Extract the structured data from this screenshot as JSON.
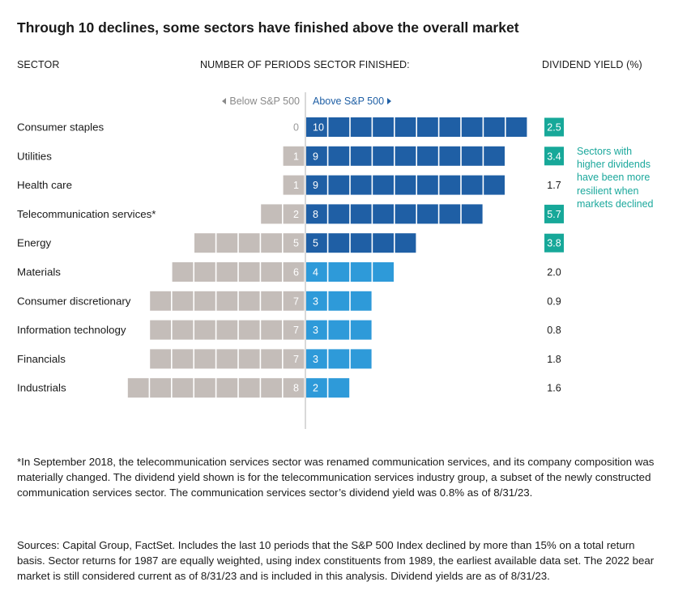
{
  "title": "Through 10 declines, some sectors have finished above the overall market",
  "headers": {
    "sector": "SECTOR",
    "periods": "NUMBER OF PERIODS SECTOR FINISHED:",
    "yield": "DIVIDEND YIELD (%)"
  },
  "directions": {
    "below": "Below S&P 500",
    "above": "Above S&P 500"
  },
  "note": "Sectors with higher dividends have been more resilient when markets declined",
  "colors": {
    "below_bar": "#c4bdb9",
    "above_dark": "#1f5fa5",
    "above_light": "#2e9ad9",
    "highlight_teal": "#17a899",
    "axis_line": "#b3b3b3",
    "zero_label": "#9a9a9a"
  },
  "chart_data": {
    "type": "bar",
    "orientation": "horizontal-diverging",
    "total_periods": 10,
    "categories": [
      "Consumer staples",
      "Utilities",
      "Health care",
      "Telecommunication services*",
      "Energy",
      "Materials",
      "Consumer discretionary",
      "Information technology",
      "Financials",
      "Industrials"
    ],
    "series": [
      {
        "name": "Below S&P 500",
        "values": [
          0,
          1,
          1,
          2,
          5,
          6,
          7,
          7,
          7,
          8
        ]
      },
      {
        "name": "Above S&P 500",
        "values": [
          10,
          9,
          9,
          8,
          5,
          4,
          3,
          3,
          3,
          2
        ]
      }
    ],
    "dividend_yield": [
      "2.5",
      "3.4",
      "1.7",
      "5.7",
      "3.8",
      "2.0",
      "0.9",
      "0.8",
      "1.8",
      "1.6"
    ],
    "yield_highlighted": [
      true,
      true,
      false,
      true,
      true,
      false,
      false,
      false,
      false,
      false
    ]
  },
  "footnotes": [
    "*In September 2018, the telecommunication services sector was renamed communication services, and its company composition was materially changed. The dividend yield shown is for the telecommunication services industry group, a subset of the newly constructed communication services sector. The communication services sector’s dividend yield was 0.8% as of 8/31/23.",
    "Sources: Capital Group, FactSet. Includes the last 10 periods that the S&P 500 Index declined by more than 15% on a total return basis. Sector returns for 1987 are equally weighted, using index constituents from 1989, the earliest available data set. The 2022 bear market is still considered current as of 8/31/23 and is included in this analysis. Dividend yields are as of 8/31/23."
  ]
}
